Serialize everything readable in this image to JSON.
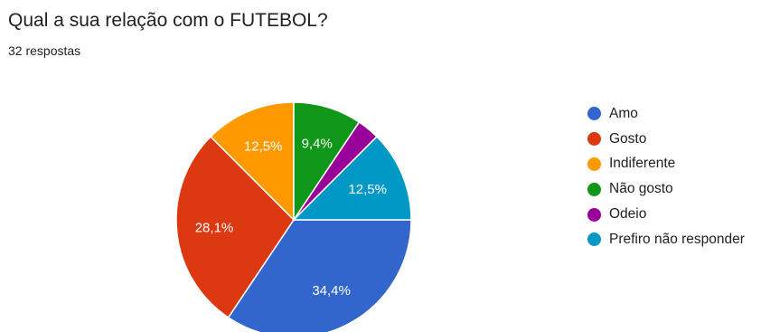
{
  "form": {
    "question": "Qual a sua relação com o FUTEBOL?",
    "responses": "32 respostas"
  },
  "chart_data": {
    "type": "pie",
    "title": "Qual a sua relação com o FUTEBOL?",
    "subtitle": "32 respostas",
    "legend_position": "right",
    "slices": [
      {
        "label": "Amo",
        "value": 34.4,
        "display": "34,4%",
        "color": "#3366cc"
      },
      {
        "label": "Gosto",
        "value": 28.1,
        "display": "28,1%",
        "color": "#dc3912"
      },
      {
        "label": "Indiferente",
        "value": 12.5,
        "display": "12,5%",
        "color": "#ff9900"
      },
      {
        "label": "Não gosto",
        "value": 9.4,
        "display": "9,4%",
        "color": "#109618"
      },
      {
        "label": "Odeio",
        "value": 3.1,
        "display": "",
        "color": "#990099"
      },
      {
        "label": "Prefiro não responder",
        "value": 12.5,
        "display": "12,5%",
        "color": "#0099c6"
      }
    ]
  }
}
